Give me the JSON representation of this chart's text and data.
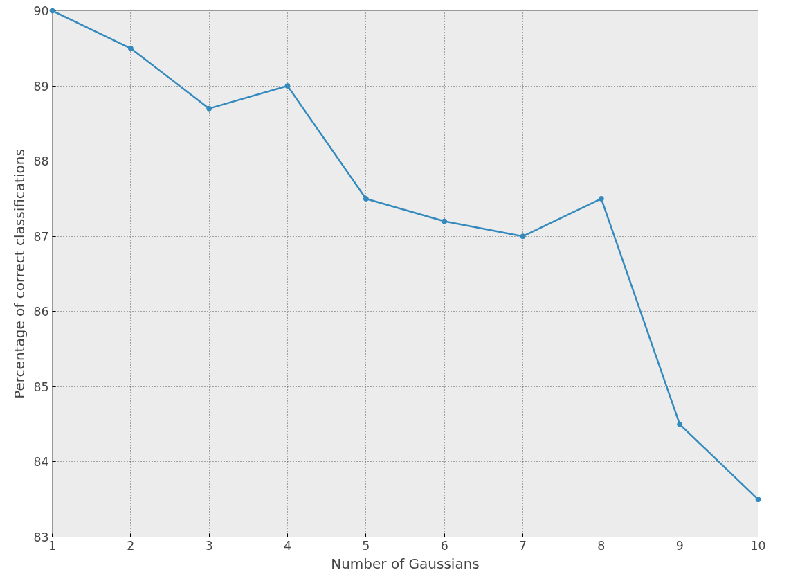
{
  "chart_data": {
    "type": "line",
    "xlabel": "Number of Gaussians",
    "ylabel": "Percentage of correct classifications",
    "x": [
      1,
      2,
      3,
      4,
      5,
      6,
      7,
      8,
      9,
      10
    ],
    "series": [
      {
        "color": "#348abd",
        "values": [
          90,
          89.5,
          88.7,
          89,
          87.5,
          87.2,
          87,
          87.5,
          84.5,
          83.5
        ]
      }
    ],
    "xlim": [
      1,
      10
    ],
    "xticks": [
      1,
      2,
      3,
      4,
      5,
      6,
      7,
      8,
      9,
      10
    ],
    "ylim": [
      83,
      90
    ],
    "yticks": [
      83,
      84,
      85,
      86,
      87,
      88,
      89,
      90
    ],
    "grid": true,
    "marker": "circle",
    "line_style": "solid"
  }
}
